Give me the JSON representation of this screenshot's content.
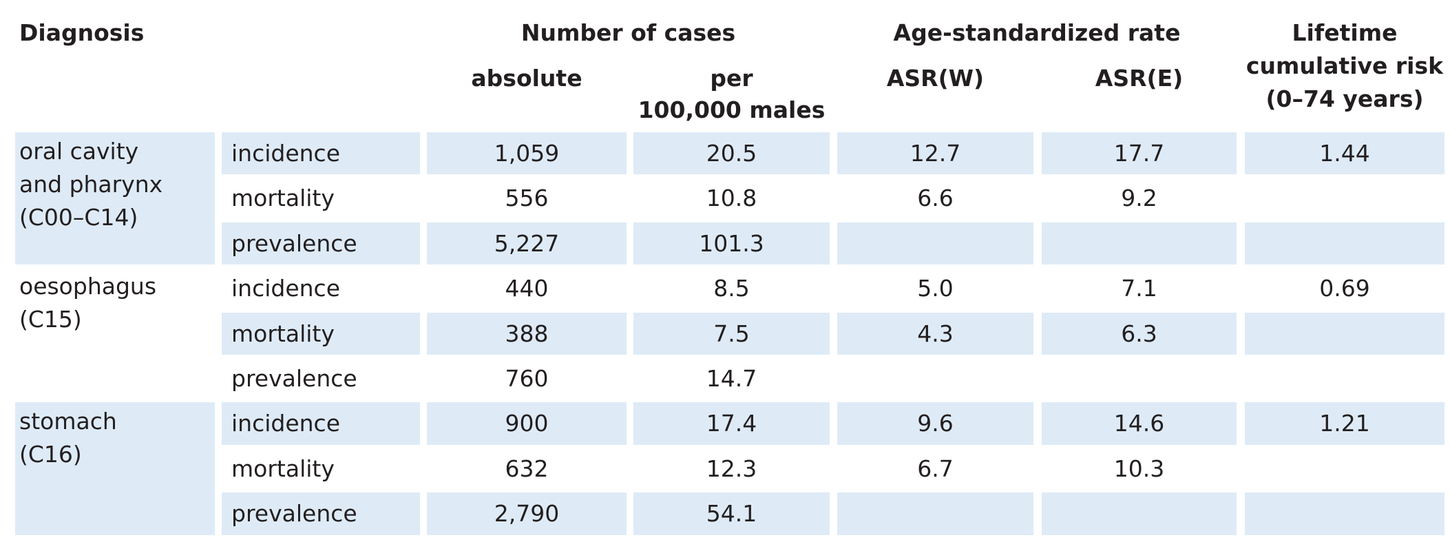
{
  "headers": {
    "diagnosis": "Diagnosis",
    "number_of_cases": "Number of cases",
    "absolute": "absolute",
    "per_line1": "per",
    "per_line2": "100,000 males",
    "age_standardized_rate": "Age-standardized rate",
    "asr_w": "ASR(W)",
    "asr_e": "ASR(E)",
    "lifetime_line1": "Lifetime",
    "lifetime_line2": "cumulative risk",
    "lifetime_line3": "(0–74 years)"
  },
  "colors": {
    "shade": "#deebf7",
    "text": "#231f20"
  },
  "groups": [
    {
      "diagnosis_lines": [
        "oral cavity",
        "and pharynx",
        "(C00–C14)"
      ],
      "rows": [
        {
          "measure": "incidence",
          "absolute": "1,059",
          "per100k": "20.5",
          "asr_w": "12.7",
          "asr_e": "17.7",
          "lifetime": "1.44"
        },
        {
          "measure": "mortality",
          "absolute": "556",
          "per100k": "10.8",
          "asr_w": "6.6",
          "asr_e": "9.2",
          "lifetime": ""
        },
        {
          "measure": "prevalence",
          "absolute": "5,227",
          "per100k": "101.3",
          "asr_w": "",
          "asr_e": "",
          "lifetime": ""
        }
      ]
    },
    {
      "diagnosis_lines": [
        "oesophagus",
        "(C15)"
      ],
      "rows": [
        {
          "measure": "incidence",
          "absolute": "440",
          "per100k": "8.5",
          "asr_w": "5.0",
          "asr_e": "7.1",
          "lifetime": "0.69"
        },
        {
          "measure": "mortality",
          "absolute": "388",
          "per100k": "7.5",
          "asr_w": "4.3",
          "asr_e": "6.3",
          "lifetime": ""
        },
        {
          "measure": "prevalence",
          "absolute": "760",
          "per100k": "14.7",
          "asr_w": "",
          "asr_e": "",
          "lifetime": ""
        }
      ]
    },
    {
      "diagnosis_lines": [
        "stomach",
        "(C16)"
      ],
      "rows": [
        {
          "measure": "incidence",
          "absolute": "900",
          "per100k": "17.4",
          "asr_w": "9.6",
          "asr_e": "14.6",
          "lifetime": "1.21"
        },
        {
          "measure": "mortality",
          "absolute": "632",
          "per100k": "12.3",
          "asr_w": "6.7",
          "asr_e": "10.3",
          "lifetime": ""
        },
        {
          "measure": "prevalence",
          "absolute": "2,790",
          "per100k": "54.1",
          "asr_w": "",
          "asr_e": "",
          "lifetime": ""
        }
      ]
    }
  ]
}
